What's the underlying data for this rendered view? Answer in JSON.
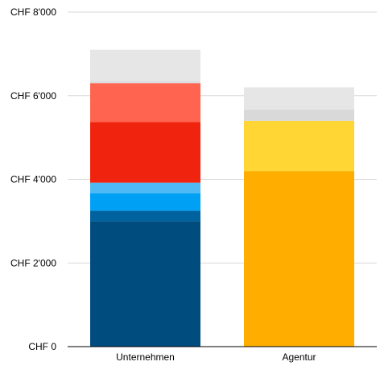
{
  "chart_data": {
    "type": "bar",
    "stacked": true,
    "y_tick_labels": [
      "CHF 0",
      "CHF 2'000",
      "CHF 4'000",
      "CHF 6'000",
      "CHF 8'000"
    ],
    "y_ticks": [
      0,
      2000,
      4000,
      6000,
      8000
    ],
    "ylim": [
      0,
      8000
    ],
    "grid": true,
    "categories": [
      "Unternehmen",
      "Agentur"
    ],
    "stacks": [
      {
        "category": "Unternehmen",
        "segments": [
          {
            "value": 3000,
            "color": "#004c7f"
          },
          {
            "value": 250,
            "color": "#00629f"
          },
          {
            "value": 420,
            "color": "#00a0f5"
          },
          {
            "value": 250,
            "color": "#4fb9f5"
          },
          {
            "value": 1450,
            "color": "#f0230f"
          },
          {
            "value": 930,
            "color": "#ff6450"
          },
          {
            "value": 50,
            "color": "#dcdcdc"
          },
          {
            "value": 750,
            "color": "#e6e6e6"
          }
        ]
      },
      {
        "category": "Agentur",
        "segments": [
          {
            "value": 4200,
            "color": "#ffae00"
          },
          {
            "value": 1200,
            "color": "#ffd633"
          },
          {
            "value": 270,
            "color": "#d9d9d9"
          },
          {
            "value": 530,
            "color": "#e6e6e6"
          }
        ]
      }
    ]
  }
}
